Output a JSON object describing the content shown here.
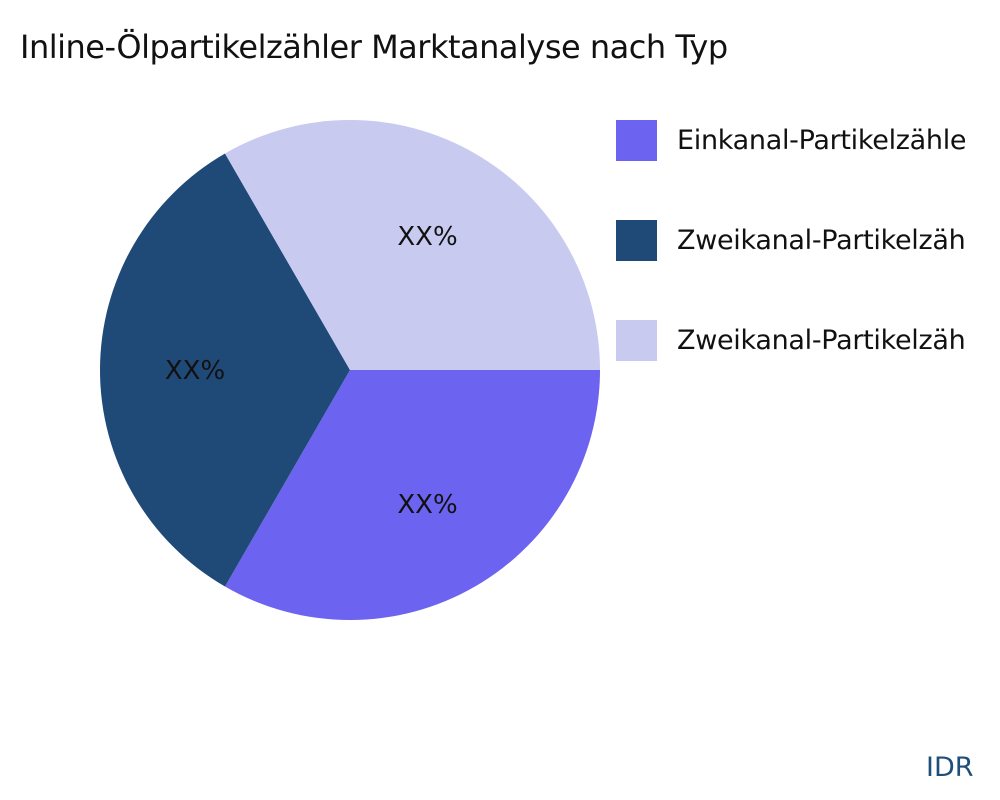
{
  "chart_data": {
    "type": "pie",
    "title": "Inline-Ölpartikelzähler Marktanalyse nach Typ",
    "slices": [
      {
        "label": "Einkanal-Partikelzähle",
        "value": 33.33,
        "data_label": "XX%",
        "color": "#6c63f0"
      },
      {
        "label": "Zweikanal-Partikelzäh",
        "value": 33.33,
        "data_label": "XX%",
        "color": "#1f4a78"
      },
      {
        "label": "Zweikanal-Partikelzäh",
        "value": 33.33,
        "data_label": "XX%",
        "color": "#c8caf0"
      }
    ],
    "start_angle_deg": 0,
    "direction": "clockwise",
    "legend_position": "right"
  },
  "watermark": "IDR"
}
